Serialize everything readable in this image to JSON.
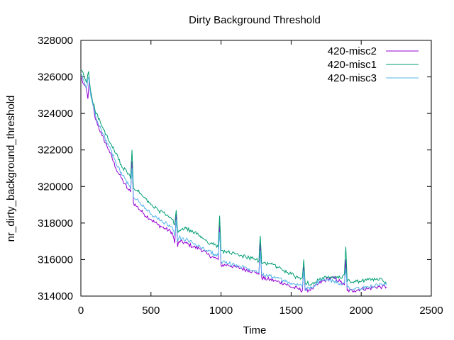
{
  "chart_data": {
    "type": "line",
    "title": "Dirty Background Threshold",
    "xlabel": "Time",
    "ylabel": "nr_dirty_background_threshold",
    "xlim": [
      0,
      2500
    ],
    "ylim": [
      314000,
      328000
    ],
    "x_ticks": [
      0,
      500,
      1000,
      1500,
      2000,
      2500
    ],
    "y_ticks": [
      314000,
      316000,
      318000,
      320000,
      322000,
      324000,
      326000,
      328000
    ],
    "grid": false,
    "legend_position": "top-right",
    "series": [
      {
        "name": "420-misc2",
        "color": "#9400d3",
        "points": [
          [
            0,
            326000
          ],
          [
            20,
            325600
          ],
          [
            40,
            325300
          ],
          [
            50,
            324800
          ],
          [
            60,
            325800
          ],
          [
            70,
            325200
          ],
          [
            100,
            323800
          ],
          [
            150,
            322800
          ],
          [
            200,
            322000
          ],
          [
            250,
            321000
          ],
          [
            300,
            320300
          ],
          [
            340,
            319800
          ],
          [
            355,
            319700
          ],
          [
            365,
            321400
          ],
          [
            375,
            319100
          ],
          [
            400,
            318900
          ],
          [
            450,
            318500
          ],
          [
            500,
            318200
          ],
          [
            550,
            317900
          ],
          [
            600,
            317700
          ],
          [
            650,
            317500
          ],
          [
            670,
            316900
          ],
          [
            680,
            318500
          ],
          [
            690,
            316700
          ],
          [
            700,
            317000
          ],
          [
            750,
            316900
          ],
          [
            800,
            316700
          ],
          [
            850,
            316600
          ],
          [
            900,
            316300
          ],
          [
            950,
            316100
          ],
          [
            980,
            316000
          ],
          [
            990,
            317900
          ],
          [
            1000,
            315700
          ],
          [
            1050,
            315700
          ],
          [
            1100,
            315600
          ],
          [
            1150,
            315500
          ],
          [
            1200,
            315400
          ],
          [
            1250,
            315300
          ],
          [
            1270,
            315200
          ],
          [
            1280,
            316900
          ],
          [
            1290,
            315000
          ],
          [
            1350,
            314900
          ],
          [
            1400,
            314800
          ],
          [
            1450,
            314700
          ],
          [
            1500,
            314500
          ],
          [
            1550,
            314400
          ],
          [
            1580,
            314300
          ],
          [
            1590,
            315600
          ],
          [
            1600,
            314300
          ],
          [
            1650,
            314400
          ],
          [
            1700,
            314700
          ],
          [
            1750,
            314900
          ],
          [
            1800,
            315000
          ],
          [
            1850,
            314800
          ],
          [
            1880,
            314600
          ],
          [
            1890,
            316000
          ],
          [
            1900,
            314300
          ],
          [
            1950,
            314300
          ],
          [
            2000,
            314400
          ],
          [
            2050,
            314400
          ],
          [
            2100,
            314500
          ],
          [
            2150,
            314500
          ],
          [
            2180,
            314500
          ]
        ]
      },
      {
        "name": "420-misc1",
        "color": "#009e73",
        "points": [
          [
            0,
            326400
          ],
          [
            20,
            326100
          ],
          [
            40,
            325700
          ],
          [
            55,
            326300
          ],
          [
            70,
            325200
          ],
          [
            100,
            324200
          ],
          [
            150,
            323300
          ],
          [
            200,
            322500
          ],
          [
            250,
            321800
          ],
          [
            300,
            321000
          ],
          [
            340,
            320700
          ],
          [
            355,
            320400
          ],
          [
            365,
            322000
          ],
          [
            375,
            319900
          ],
          [
            400,
            319800
          ],
          [
            450,
            319400
          ],
          [
            500,
            319000
          ],
          [
            550,
            318700
          ],
          [
            600,
            318500
          ],
          [
            650,
            318200
          ],
          [
            670,
            317900
          ],
          [
            680,
            318700
          ],
          [
            690,
            317500
          ],
          [
            700,
            317600
          ],
          [
            750,
            317700
          ],
          [
            800,
            317500
          ],
          [
            850,
            317300
          ],
          [
            900,
            317000
          ],
          [
            950,
            316800
          ],
          [
            980,
            316700
          ],
          [
            990,
            318400
          ],
          [
            1000,
            316500
          ],
          [
            1050,
            316400
          ],
          [
            1100,
            316300
          ],
          [
            1150,
            316200
          ],
          [
            1200,
            316100
          ],
          [
            1250,
            316000
          ],
          [
            1270,
            315900
          ],
          [
            1280,
            317300
          ],
          [
            1290,
            315800
          ],
          [
            1350,
            315800
          ],
          [
            1400,
            315600
          ],
          [
            1450,
            315400
          ],
          [
            1500,
            315200
          ],
          [
            1550,
            315000
          ],
          [
            1580,
            315000
          ],
          [
            1590,
            316000
          ],
          [
            1600,
            314700
          ],
          [
            1650,
            314700
          ],
          [
            1700,
            314900
          ],
          [
            1750,
            315000
          ],
          [
            1800,
            315000
          ],
          [
            1850,
            315000
          ],
          [
            1880,
            315200
          ],
          [
            1890,
            316700
          ],
          [
            1900,
            314800
          ],
          [
            1950,
            314800
          ],
          [
            2000,
            314800
          ],
          [
            2050,
            314900
          ],
          [
            2100,
            314900
          ],
          [
            2150,
            314900
          ],
          [
            2180,
            314700
          ]
        ]
      },
      {
        "name": "420-misc3",
        "color": "#56b4e9",
        "points": [
          [
            0,
            326200
          ],
          [
            20,
            325800
          ],
          [
            40,
            325400
          ],
          [
            55,
            326000
          ],
          [
            70,
            325000
          ],
          [
            100,
            324000
          ],
          [
            150,
            323000
          ],
          [
            200,
            322200
          ],
          [
            250,
            321300
          ],
          [
            300,
            320600
          ],
          [
            340,
            320100
          ],
          [
            355,
            319900
          ],
          [
            365,
            321000
          ],
          [
            375,
            319400
          ],
          [
            400,
            319300
          ],
          [
            450,
            318900
          ],
          [
            500,
            318500
          ],
          [
            550,
            318200
          ],
          [
            600,
            318000
          ],
          [
            650,
            317800
          ],
          [
            670,
            317300
          ],
          [
            680,
            318200
          ],
          [
            690,
            317000
          ],
          [
            700,
            317200
          ],
          [
            750,
            317100
          ],
          [
            800,
            316900
          ],
          [
            850,
            316700
          ],
          [
            900,
            316500
          ],
          [
            950,
            316300
          ],
          [
            980,
            316200
          ],
          [
            990,
            317500
          ],
          [
            1000,
            315900
          ],
          [
            1050,
            315800
          ],
          [
            1100,
            315700
          ],
          [
            1150,
            315600
          ],
          [
            1200,
            315500
          ],
          [
            1250,
            315400
          ],
          [
            1270,
            315300
          ],
          [
            1280,
            316500
          ],
          [
            1290,
            315200
          ],
          [
            1350,
            315100
          ],
          [
            1400,
            315000
          ],
          [
            1450,
            314800
          ],
          [
            1500,
            314700
          ],
          [
            1550,
            314600
          ],
          [
            1580,
            314500
          ],
          [
            1590,
            315400
          ],
          [
            1600,
            314400
          ],
          [
            1650,
            314500
          ],
          [
            1700,
            314800
          ],
          [
            1750,
            314900
          ],
          [
            1800,
            314800
          ],
          [
            1850,
            314700
          ],
          [
            1880,
            314700
          ],
          [
            1890,
            315500
          ],
          [
            1900,
            314500
          ],
          [
            1950,
            314400
          ],
          [
            2000,
            314400
          ],
          [
            2050,
            314500
          ],
          [
            2100,
            314600
          ],
          [
            2150,
            314600
          ],
          [
            2180,
            314600
          ]
        ]
      }
    ]
  }
}
